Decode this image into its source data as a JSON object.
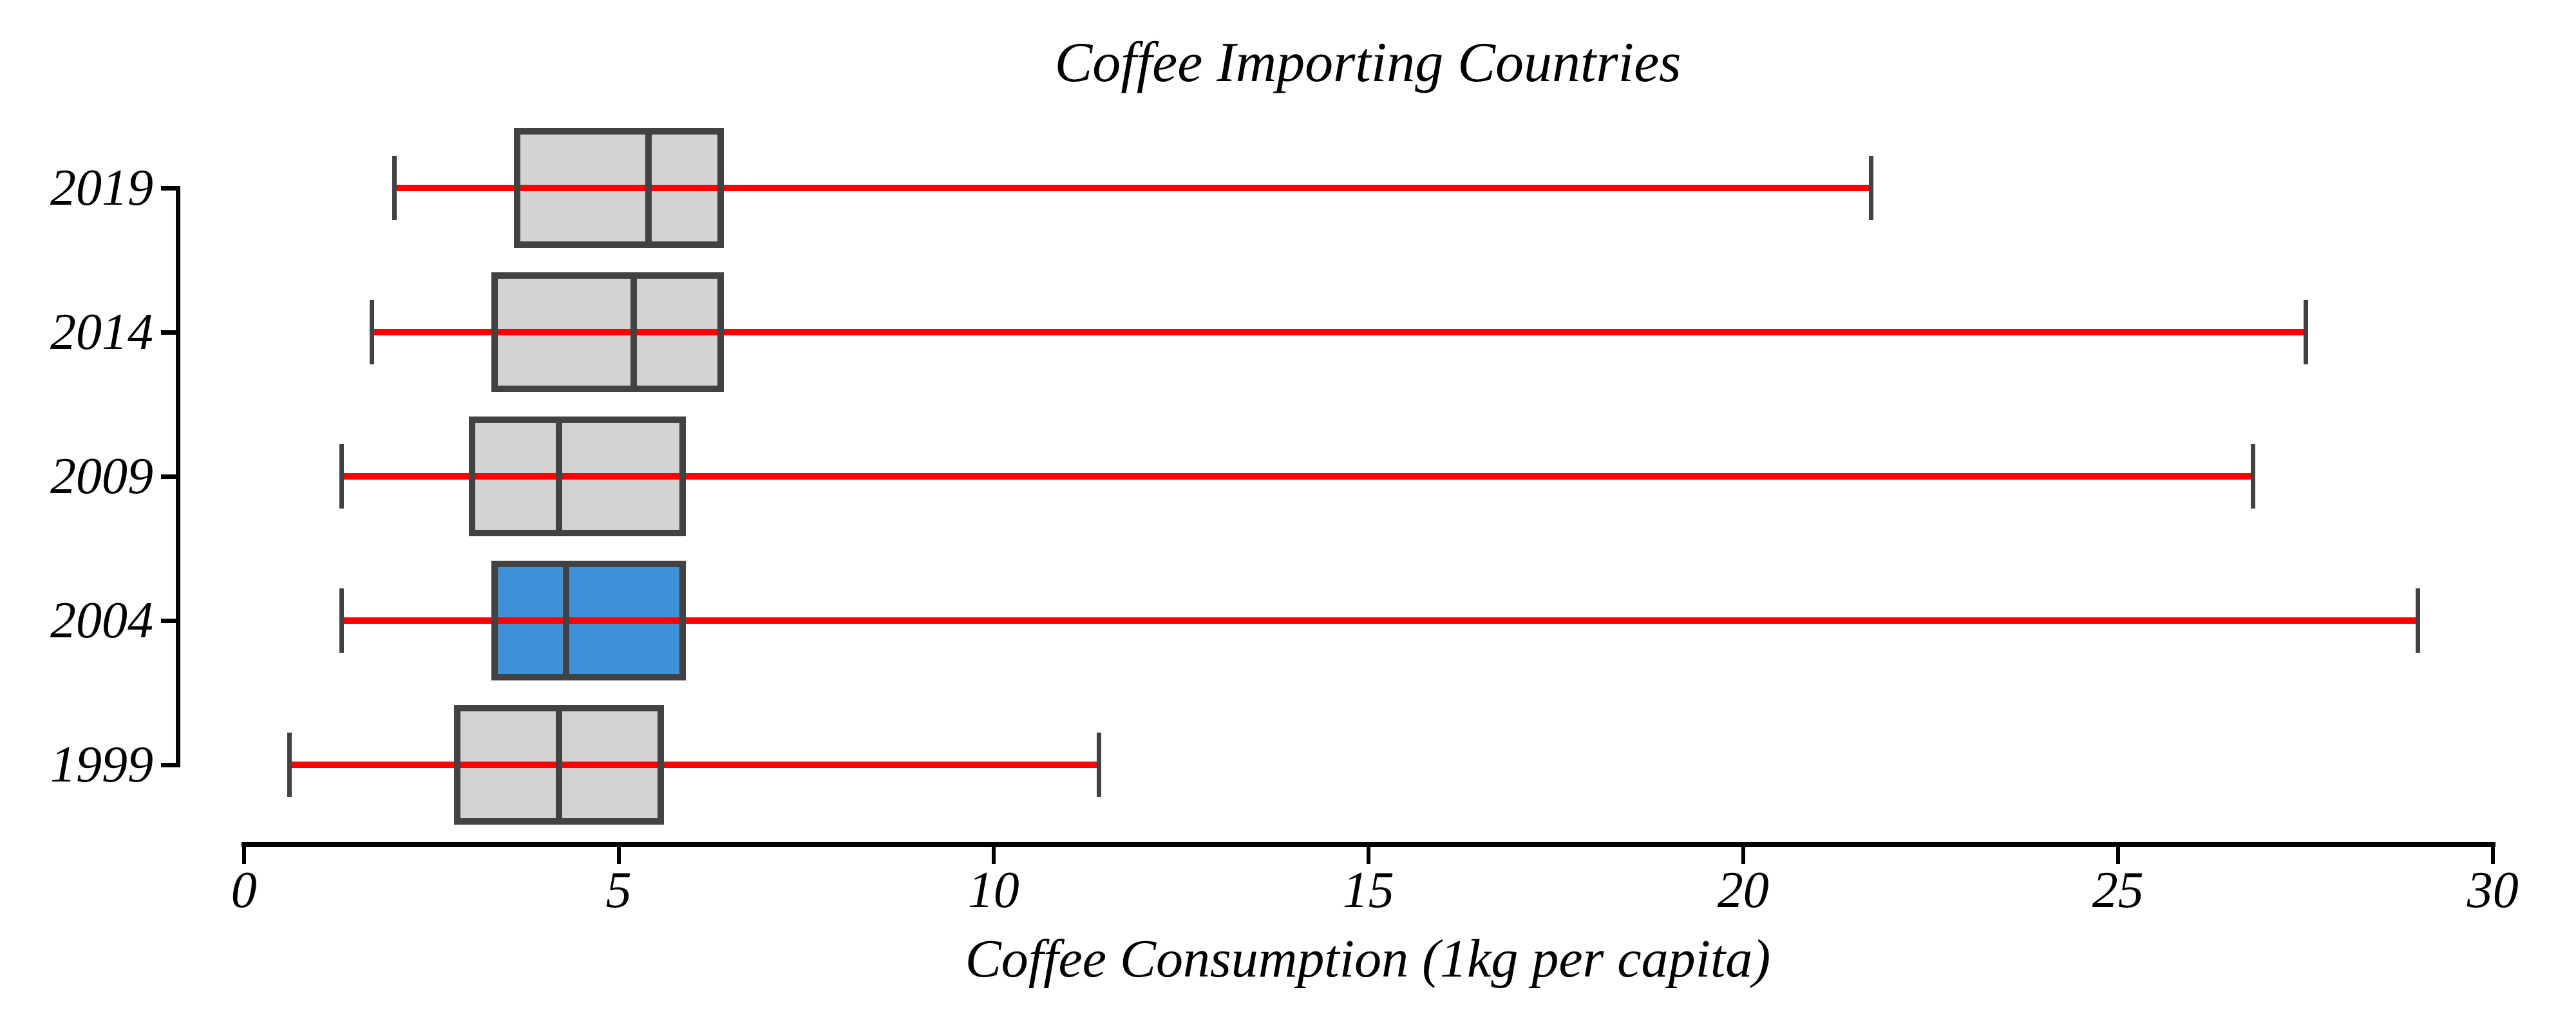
{
  "title": "Coffee Importing Countries",
  "xlabel": "Coffee Consumption (1kg per capita)",
  "background_color": "#ffffff",
  "chart_data": {
    "type": "boxplot",
    "orientation": "horizontal",
    "title": "Coffee Importing Countries",
    "xlabel": "Coffee Consumption (1kg per capita)",
    "ylabel": "",
    "xlim": [
      0,
      30
    ],
    "xticks": [
      0,
      5,
      10,
      15,
      20,
      25,
      30
    ],
    "categories": [
      "2019",
      "2014",
      "2009",
      "2004",
      "1999"
    ],
    "series": [
      {
        "label": "2019",
        "whislo": 2.0,
        "q1": 3.6,
        "med": 5.4,
        "q3": 6.4,
        "whishi": 21.7,
        "fill": "#d3d3d3"
      },
      {
        "label": "2014",
        "whislo": 1.7,
        "q1": 3.3,
        "med": 5.2,
        "q3": 6.4,
        "whishi": 27.5,
        "fill": "#d3d3d3"
      },
      {
        "label": "2009",
        "whislo": 1.3,
        "q1": 3.0,
        "med": 4.2,
        "q3": 5.9,
        "whishi": 26.8,
        "fill": "#d3d3d3"
      },
      {
        "label": "2004",
        "whislo": 1.3,
        "q1": 3.3,
        "med": 4.3,
        "q3": 5.9,
        "whishi": 29.0,
        "fill": "#3e92d8",
        "highlighted": true
      },
      {
        "label": "1999",
        "whislo": 0.6,
        "q1": 2.8,
        "med": 4.2,
        "q3": 5.6,
        "whishi": 11.4,
        "fill": "#d3d3d3"
      }
    ],
    "whisker_color": "#ff0000",
    "edge_color": "#424242",
    "axis_color": "#000000",
    "highlight_fill": "#3e92d8",
    "box_fill": "#d3d3d3",
    "grid": false,
    "legend": null
  }
}
